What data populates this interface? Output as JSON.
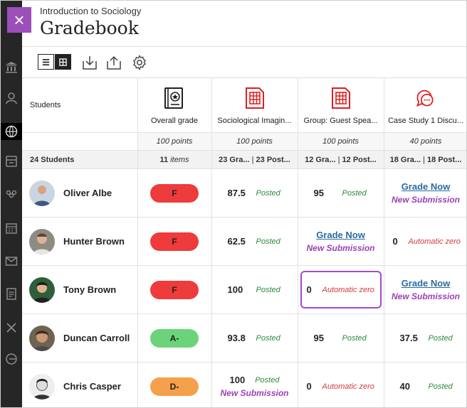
{
  "header": {
    "course_name": "Introduction to Sociology",
    "page_title": "Gradebook",
    "close_symbol": "×"
  },
  "toolbar": {
    "list_view_icon": "list-icon",
    "grid_view_icon": "grid-icon",
    "download_icon": "download-icon",
    "upload_icon": "upload-icon",
    "settings_icon": "gear-icon"
  },
  "sidebar": {
    "icons": [
      "institution-icon",
      "profile-icon",
      "courses-icon",
      "organizations-icon",
      "calendar-icon",
      "messages-icon",
      "grades-icon",
      "tools-icon",
      "signout-icon"
    ]
  },
  "columns": {
    "students": "Students",
    "overall": {
      "title": "Overall grade",
      "points": "100 points",
      "count_num": "11",
      "count_label": "items"
    },
    "c1": {
      "title": "Sociological Imagin...",
      "points": "100 points",
      "graded": "23 Gra...",
      "posted": "23 Post..."
    },
    "c2": {
      "title": "Group: Guest Spea...",
      "points": "100 points",
      "graded": "12 Gra...",
      "posted": "12 Post..."
    },
    "c3": {
      "title": "Case Study 1 Discu...",
      "points": "40 points",
      "graded": "18 Gra...",
      "posted": "18 Post..."
    }
  },
  "student_count": "24 Students",
  "separator": "|",
  "labels": {
    "posted": "Posted",
    "grade_now": "Grade Now",
    "new_submission": "New Submission",
    "automatic_zero": "Automatic zero"
  },
  "colors": {
    "accent": "#9c4fb8",
    "grade_fail": "#ee3b3b",
    "grade_a": "#6bd47a",
    "grade_d": "#f5a04a",
    "posted": "#2e8b3c",
    "auto_zero": "#d23b3b",
    "grade_now": "#2c6a9e",
    "new_submission": "#9c3fb5"
  },
  "rows": [
    {
      "name": "Oliver Albe",
      "overall": "F",
      "c1": "87.5",
      "c2": "95",
      "c3": "Grade Now"
    },
    {
      "name": "Hunter Brown",
      "overall": "F",
      "c1": "62.5",
      "c2": "Grade Now",
      "c3": "0"
    },
    {
      "name": "Tony Brown",
      "overall": "F",
      "c1": "100",
      "c2": "0",
      "c3": "Grade Now"
    },
    {
      "name": "Duncan Carroll",
      "overall": "A-",
      "c1": "93.8",
      "c2": "95",
      "c3": "37.5"
    },
    {
      "name": "Chris Casper",
      "overall": "D-",
      "c1": "100",
      "c2": "0",
      "c3": "40"
    }
  ]
}
